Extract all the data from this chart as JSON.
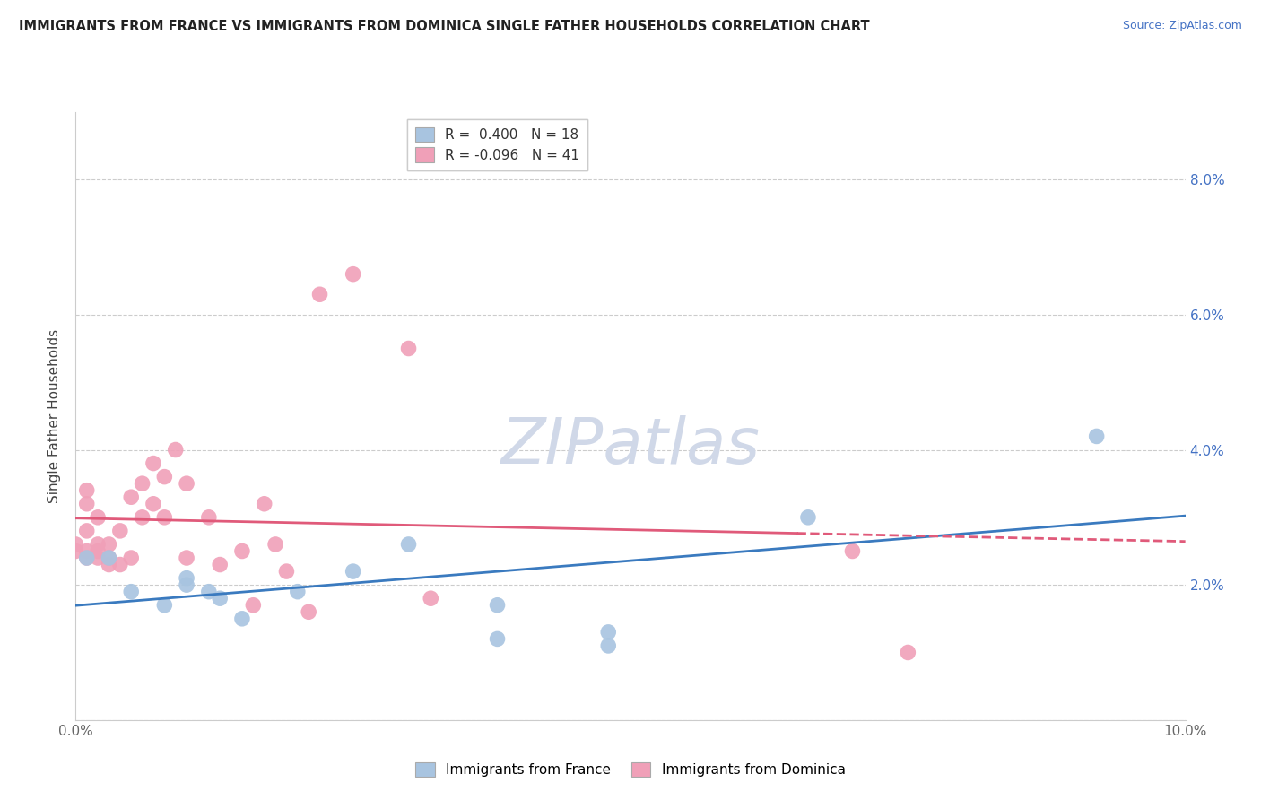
{
  "title": "IMMIGRANTS FROM FRANCE VS IMMIGRANTS FROM DOMINICA SINGLE FATHER HOUSEHOLDS CORRELATION CHART",
  "source": "Source: ZipAtlas.com",
  "ylabel": "Single Father Households",
  "legend_france": "Immigrants from France",
  "legend_dominica": "Immigrants from Dominica",
  "R_france": 0.4,
  "N_france": 18,
  "R_dominica": -0.096,
  "N_dominica": 41,
  "xlim": [
    0.0,
    0.1
  ],
  "ylim": [
    0.0,
    0.09
  ],
  "xticks": [
    0.0,
    0.02,
    0.04,
    0.06,
    0.08,
    0.1
  ],
  "yticks": [
    0.0,
    0.02,
    0.04,
    0.06,
    0.08
  ],
  "ytick_labels_right": [
    "",
    "2.0%",
    "4.0%",
    "6.0%",
    "8.0%"
  ],
  "xtick_labels": [
    "0.0%",
    "",
    "",
    "",
    "",
    "10.0%"
  ],
  "color_france": "#a8c4e0",
  "color_dominica": "#f0a0b8",
  "trendline_france_color": "#3a7abf",
  "trendline_dominica_color": "#e05a7a",
  "background_color": "#ffffff",
  "grid_color": "#cccccc",
  "france_x": [
    0.001,
    0.003,
    0.005,
    0.008,
    0.01,
    0.01,
    0.012,
    0.013,
    0.015,
    0.02,
    0.025,
    0.03,
    0.038,
    0.038,
    0.048,
    0.048,
    0.066,
    0.092
  ],
  "france_y": [
    0.024,
    0.024,
    0.019,
    0.017,
    0.02,
    0.021,
    0.019,
    0.018,
    0.015,
    0.019,
    0.022,
    0.026,
    0.017,
    0.012,
    0.011,
    0.013,
    0.03,
    0.042
  ],
  "dominica_x": [
    0.0,
    0.0,
    0.001,
    0.001,
    0.001,
    0.001,
    0.001,
    0.002,
    0.002,
    0.002,
    0.002,
    0.003,
    0.003,
    0.003,
    0.004,
    0.004,
    0.005,
    0.005,
    0.006,
    0.006,
    0.007,
    0.007,
    0.008,
    0.008,
    0.009,
    0.01,
    0.01,
    0.012,
    0.013,
    0.015,
    0.016,
    0.017,
    0.018,
    0.019,
    0.021,
    0.022,
    0.025,
    0.03,
    0.032,
    0.07,
    0.075
  ],
  "dominica_y": [
    0.025,
    0.026,
    0.024,
    0.025,
    0.028,
    0.032,
    0.034,
    0.024,
    0.025,
    0.026,
    0.03,
    0.023,
    0.024,
    0.026,
    0.023,
    0.028,
    0.024,
    0.033,
    0.03,
    0.035,
    0.032,
    0.038,
    0.03,
    0.036,
    0.04,
    0.024,
    0.035,
    0.03,
    0.023,
    0.025,
    0.017,
    0.032,
    0.026,
    0.022,
    0.016,
    0.063,
    0.066,
    0.055,
    0.018,
    0.025,
    0.01
  ],
  "trendline_dominica_dash_start": 0.065,
  "watermark": "ZIPatlas",
  "watermark_color": "#d0d8e8"
}
